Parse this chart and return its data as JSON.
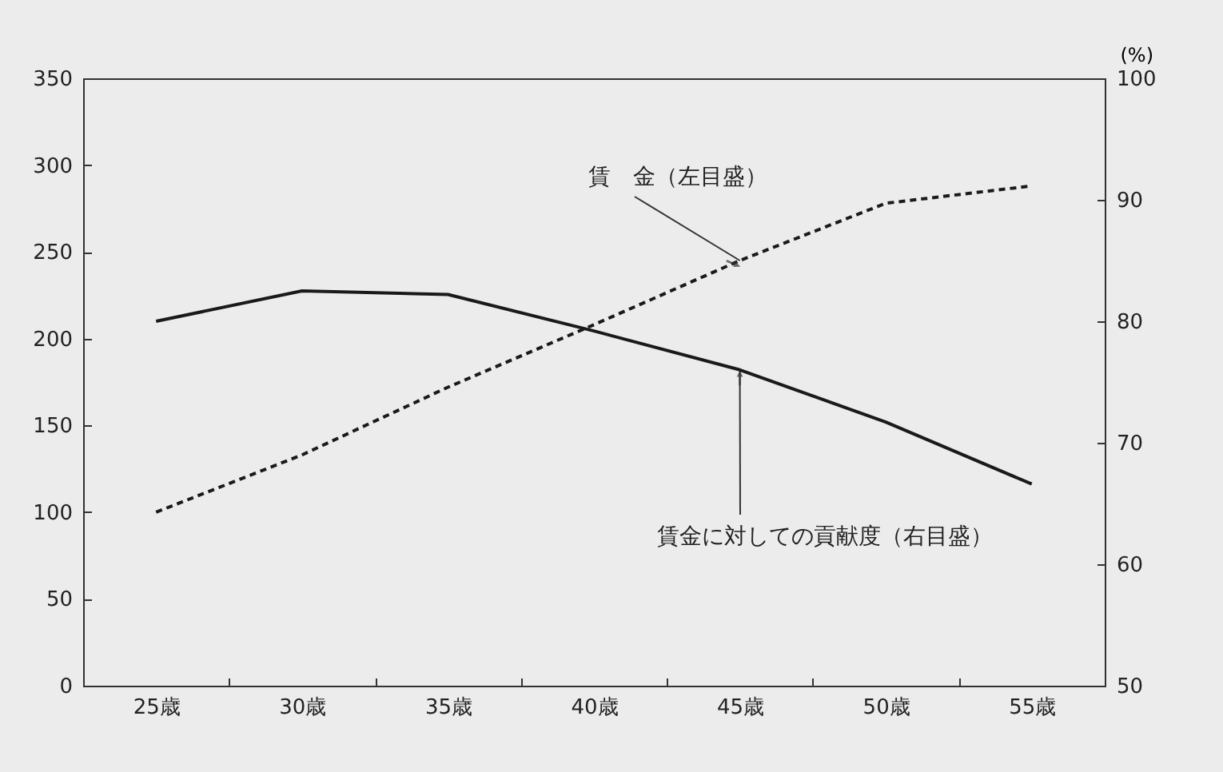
{
  "chart_data": {
    "type": "line",
    "categories": [
      "25歳",
      "30歳",
      "35歳",
      "40歳",
      "45歳",
      "50歳",
      "55歳"
    ],
    "series": [
      {
        "color": "#1a1a1a",
        "values": [
          100,
          133,
          172,
          208,
          245,
          278,
          288
        ],
        "line_style": "dashed"
      },
      {
        "color": "#1a1a1a",
        "values": [
          80,
          82.5,
          82.2,
          79.2,
          76,
          71.7,
          66.6
        ],
        "axis": "y2",
        "line_style": "solid"
      }
    ],
    "ylim": [
      0,
      350
    ],
    "yticks": [
      0,
      50,
      100,
      150,
      200,
      250,
      300,
      350
    ],
    "y2lim": [
      50,
      100
    ],
    "y2ticks": [
      50,
      60,
      70,
      80,
      90,
      100
    ],
    "y2label": "(%)",
    "annotations": [
      {
        "text": "賃　金（左目盛）",
        "x": "45歳",
        "y": 245
      },
      {
        "text": "賃金に対しての貢献度（右目盛）",
        "x": "45歳",
        "y": 182
      }
    ],
    "grid": false
  }
}
